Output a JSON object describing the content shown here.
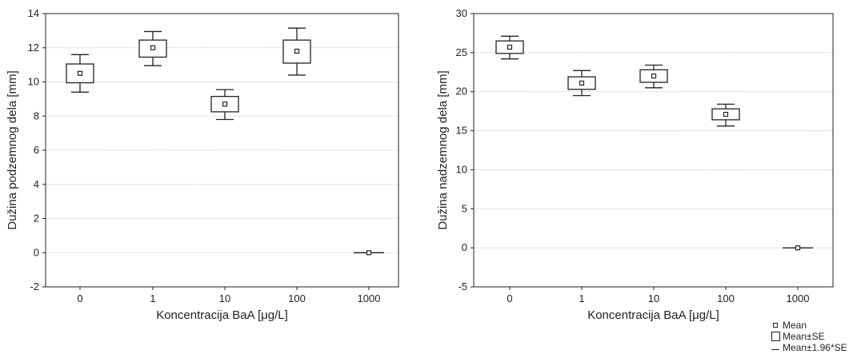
{
  "chart_data": [
    {
      "type": "box",
      "title": "",
      "xlabel": "Koncentracija BaA [μg/L]",
      "ylabel": "Dužina podzemnog dela [mm]",
      "categories": [
        "0",
        "1",
        "10",
        "100",
        "1000"
      ],
      "ylim": [
        -2,
        14
      ],
      "yticks": [
        -2,
        0,
        2,
        4,
        6,
        8,
        10,
        12,
        14
      ],
      "grid": true,
      "series": [
        {
          "mean": [
            10.5,
            12.0,
            8.7,
            11.8,
            0.0
          ],
          "se_low": [
            9.95,
            11.45,
            8.25,
            11.1,
            0.0
          ],
          "se_high": [
            11.05,
            12.45,
            9.15,
            12.45,
            0.0
          ],
          "ci_low": [
            9.4,
            10.95,
            7.8,
            10.4,
            0.0
          ],
          "ci_high": [
            11.6,
            12.95,
            9.55,
            13.15,
            0.0
          ]
        }
      ]
    },
    {
      "type": "box",
      "title": "",
      "xlabel": "Koncentracija BaA [μg/L]",
      "ylabel": "Dužina nadzemnog dela [mm]",
      "categories": [
        "0",
        "1",
        "10",
        "100",
        "1000"
      ],
      "ylim": [
        -5,
        30
      ],
      "yticks": [
        -5,
        0,
        5,
        10,
        15,
        20,
        25,
        30
      ],
      "grid": true,
      "series": [
        {
          "mean": [
            25.7,
            21.1,
            22.0,
            17.1,
            0.0
          ],
          "se_low": [
            24.9,
            20.3,
            21.2,
            16.4,
            0.0
          ],
          "se_high": [
            26.5,
            21.9,
            22.8,
            17.8,
            0.0
          ],
          "ci_low": [
            24.2,
            19.5,
            20.5,
            15.6,
            0.0
          ],
          "ci_high": [
            27.1,
            22.7,
            23.4,
            18.4,
            0.0
          ]
        }
      ]
    }
  ],
  "legend": {
    "placement": "bottom-right",
    "items": [
      {
        "label": "Mean",
        "symbol": "mean-marker-icon"
      },
      {
        "label": "Mean±SE",
        "symbol": "se-box-icon"
      },
      {
        "label": "Mean±1.96*SE",
        "symbol": "ci-whisker-icon"
      }
    ]
  },
  "colors": {
    "ink": "#222222",
    "grid": "#c8c8c8"
  }
}
